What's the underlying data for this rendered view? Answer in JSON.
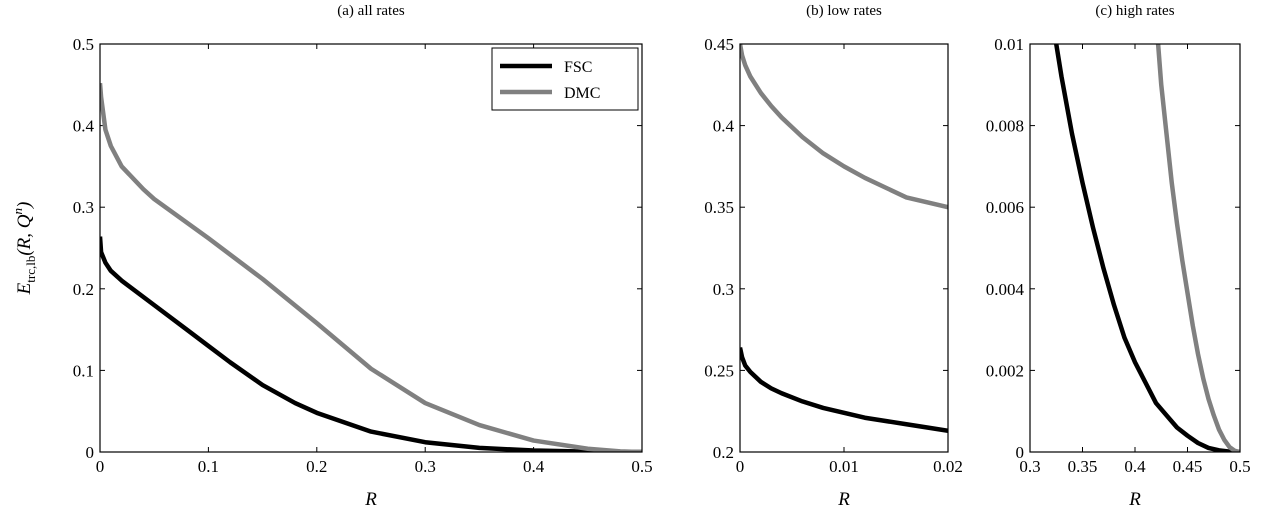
{
  "chart_data": [
    {
      "id": "all-rates",
      "type": "line",
      "title": "(a) all rates",
      "xlabel": "R",
      "ylabel": "E_trc,lb(R, Q^n)",
      "xlim": [
        0,
        0.5
      ],
      "ylim": [
        0,
        0.5
      ],
      "xticks": [
        0,
        0.1,
        0.2,
        0.3,
        0.4,
        0.5
      ],
      "xtick_labels": [
        "0",
        "0.1",
        "0.2",
        "0.3",
        "0.4",
        "0.5"
      ],
      "yticks": [
        0,
        0.1,
        0.2,
        0.3,
        0.4,
        0.5
      ],
      "ytick_labels": [
        "0",
        "0.1",
        "0.2",
        "0.3",
        "0.4",
        "0.5"
      ],
      "legend": {
        "position": "top-right",
        "entries": [
          "FSC",
          "DMC"
        ]
      },
      "series": [
        {
          "name": "FSC",
          "color": "#000000",
          "x": [
            0,
            0.001,
            0.005,
            0.01,
            0.02,
            0.05,
            0.08,
            0.1,
            0.12,
            0.15,
            0.18,
            0.2,
            0.25,
            0.3,
            0.35,
            0.4,
            0.45,
            0.5
          ],
          "y": [
            0.264,
            0.245,
            0.232,
            0.222,
            0.21,
            0.18,
            0.15,
            0.13,
            0.11,
            0.082,
            0.06,
            0.048,
            0.025,
            0.012,
            0.005,
            0.0018,
            0.0004,
            0
          ]
        },
        {
          "name": "DMC",
          "color": "#808080",
          "x": [
            0,
            0.001,
            0.005,
            0.01,
            0.02,
            0.04,
            0.05,
            0.1,
            0.15,
            0.2,
            0.25,
            0.3,
            0.35,
            0.4,
            0.45,
            0.48,
            0.5
          ],
          "y": [
            0.452,
            0.435,
            0.395,
            0.375,
            0.35,
            0.322,
            0.31,
            0.262,
            0.212,
            0.158,
            0.102,
            0.06,
            0.033,
            0.014,
            0.004,
            0.0008,
            0
          ]
        }
      ]
    },
    {
      "id": "low-rates",
      "type": "line",
      "title": "(b) low rates",
      "xlabel": "R",
      "xlim": [
        0,
        0.02
      ],
      "ylim": [
        0.2,
        0.45
      ],
      "xticks": [
        0,
        0.01,
        0.02
      ],
      "xtick_labels": [
        "0",
        "0.01",
        "0.02"
      ],
      "yticks": [
        0.2,
        0.25,
        0.3,
        0.35,
        0.4,
        0.45
      ],
      "ytick_labels": [
        "0.2",
        "0.25",
        "0.3",
        "0.35",
        "0.4",
        "0.45"
      ],
      "series": [
        {
          "name": "FSC",
          "color": "#000000",
          "x": [
            0,
            0.0002,
            0.0005,
            0.001,
            0.002,
            0.003,
            0.004,
            0.006,
            0.008,
            0.01,
            0.012,
            0.014,
            0.016,
            0.018,
            0.02
          ],
          "y": [
            0.264,
            0.258,
            0.253,
            0.249,
            0.243,
            0.239,
            0.236,
            0.231,
            0.227,
            0.224,
            0.221,
            0.219,
            0.217,
            0.215,
            0.213
          ]
        },
        {
          "name": "DMC",
          "color": "#808080",
          "x": [
            0,
            0.0002,
            0.0005,
            0.001,
            0.002,
            0.003,
            0.004,
            0.006,
            0.008,
            0.01,
            0.012,
            0.014,
            0.016,
            0.018,
            0.02
          ],
          "y": [
            0.45,
            0.443,
            0.437,
            0.43,
            0.42,
            0.412,
            0.405,
            0.393,
            0.383,
            0.375,
            0.368,
            0.362,
            0.356,
            0.353,
            0.35
          ]
        }
      ]
    },
    {
      "id": "high-rates",
      "type": "line",
      "title": "(c) high rates",
      "xlabel": "R",
      "xlim": [
        0.3,
        0.5
      ],
      "ylim": [
        0,
        0.01
      ],
      "xticks": [
        0.3,
        0.35,
        0.4,
        0.45,
        0.5
      ],
      "xtick_labels": [
        "0.3",
        "0.35",
        "0.4",
        "0.45",
        "0.5"
      ],
      "yticks": [
        0,
        0.002,
        0.004,
        0.006,
        0.008,
        0.01
      ],
      "ytick_labels": [
        "0",
        "0.002",
        "0.004",
        "0.006",
        "0.008",
        "0.01"
      ],
      "series": [
        {
          "name": "FSC",
          "color": "#000000",
          "x": [
            0.325,
            0.33,
            0.34,
            0.35,
            0.36,
            0.37,
            0.38,
            0.39,
            0.4,
            0.41,
            0.42,
            0.43,
            0.44,
            0.45,
            0.46,
            0.47,
            0.48,
            0.49,
            0.5
          ],
          "y": [
            0.01,
            0.0092,
            0.0078,
            0.0066,
            0.0055,
            0.0045,
            0.0036,
            0.0028,
            0.0022,
            0.0017,
            0.0012,
            0.0009,
            0.0006,
            0.0004,
            0.00022,
            0.0001,
            4e-05,
            1e-05,
            0
          ]
        },
        {
          "name": "DMC",
          "color": "#808080",
          "x": [
            0.422,
            0.425,
            0.43,
            0.435,
            0.44,
            0.445,
            0.45,
            0.455,
            0.46,
            0.465,
            0.47,
            0.475,
            0.48,
            0.485,
            0.49,
            0.495,
            0.5
          ],
          "y": [
            0.01,
            0.009,
            0.0078,
            0.0066,
            0.0056,
            0.0047,
            0.0039,
            0.0031,
            0.0024,
            0.0018,
            0.0013,
            0.0009,
            0.00055,
            0.0003,
            0.00012,
            3e-05,
            0
          ]
        }
      ]
    }
  ]
}
